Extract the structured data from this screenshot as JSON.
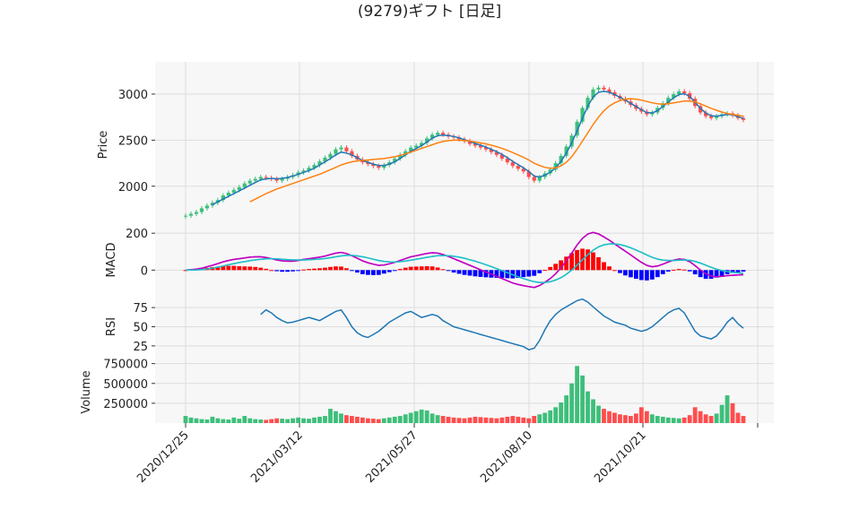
{
  "title": "(9279)ギフト [日足]",
  "colors": {
    "up": "#3dbf7a",
    "down": "#ff4d4d",
    "ma_short": "#1f77b4",
    "ma_long": "#ff7f0e",
    "macd": "#c000c0",
    "signal": "#20c0c8",
    "hist_pos": "#ff0000",
    "hist_neg": "#0000ff",
    "rsi": "#1f77b4",
    "panel_bg": "#f7f7f7",
    "grid": "#dddddd"
  },
  "chart_data": {
    "type": "line",
    "x_tick_labels": [
      "2020/12/25",
      "2021/03/12",
      "2021/05/27",
      "2021/08/10",
      "2021/10/21"
    ],
    "panels": [
      {
        "name": "price",
        "ylabel": "Price",
        "yticks": [
          2000,
          2500,
          3000
        ],
        "ylim": [
          1550,
          3350
        ],
        "series": [
          {
            "kind": "candlestick",
            "close": [
              1680,
              1700,
              1720,
              1760,
              1790,
              1820,
              1850,
              1900,
              1930,
              1960,
              1990,
              2030,
              2060,
              2080,
              2100,
              2090,
              2080,
              2060,
              2080,
              2100,
              2120,
              2150,
              2170,
              2200,
              2230,
              2270,
              2310,
              2350,
              2400,
              2420,
              2380,
              2330,
              2290,
              2260,
              2240,
              2220,
              2200,
              2230,
              2260,
              2300,
              2340,
              2380,
              2420,
              2440,
              2470,
              2520,
              2560,
              2580,
              2560,
              2540,
              2530,
              2510,
              2490,
              2460,
              2440,
              2420,
              2400,
              2370,
              2340,
              2300,
              2260,
              2220,
              2190,
              2160,
              2100,
              2060,
              2100,
              2140,
              2180,
              2250,
              2330,
              2430,
              2550,
              2700,
              2850,
              2960,
              3050,
              3070,
              3050,
              3020,
              2980,
              2950,
              2920,
              2880,
              2840,
              2810,
              2780,
              2800,
              2850,
              2900,
              2960,
              3000,
              3030,
              3010,
              2950,
              2870,
              2800,
              2760,
              2740,
              2760,
              2780,
              2790,
              2770,
              2740,
              2720
            ]
          },
          {
            "kind": "line",
            "values": [
              null,
              null,
              null,
              null,
              null,
              1800,
              1830,
              1860,
              1890,
              1920,
              1950,
              1980,
              2010,
              2040,
              2070,
              2080,
              2085,
              2080,
              2085,
              2095,
              2110,
              2130,
              2150,
              2170,
              2195,
              2230,
              2265,
              2300,
              2340,
              2370,
              2360,
              2340,
              2310,
              2280,
              2260,
              2240,
              2225,
              2225,
              2240,
              2265,
              2300,
              2340,
              2380,
              2410,
              2440,
              2480,
              2520,
              2550,
              2555,
              2550,
              2540,
              2525,
              2505,
              2485,
              2465,
              2445,
              2425,
              2400,
              2375,
              2345,
              2310,
              2270,
              2235,
              2200,
              2160,
              2110,
              2100,
              2120,
              2150,
              2200,
              2270,
              2360,
              2470,
              2600,
              2740,
              2870,
              2970,
              3020,
              3030,
              3020,
              2995,
              2965,
              2935,
              2900,
              2865,
              2830,
              2800,
              2795,
              2820,
              2865,
              2915,
              2960,
              2995,
              3005,
              2975,
              2910,
              2845,
              2795,
              2765,
              2760,
              2770,
              2780,
              2775,
              2755,
              2735
            ]
          },
          {
            "kind": "line",
            "values": [
              null,
              null,
              null,
              null,
              null,
              null,
              null,
              null,
              null,
              null,
              null,
              null,
              1830,
              1860,
              1890,
              1920,
              1945,
              1970,
              1990,
              2010,
              2030,
              2050,
              2070,
              2090,
              2110,
              2130,
              2155,
              2180,
              2205,
              2230,
              2250,
              2265,
              2275,
              2280,
              2285,
              2290,
              2295,
              2300,
              2310,
              2320,
              2335,
              2350,
              2370,
              2390,
              2410,
              2430,
              2450,
              2470,
              2485,
              2495,
              2500,
              2500,
              2495,
              2490,
              2480,
              2470,
              2460,
              2445,
              2430,
              2410,
              2390,
              2365,
              2340,
              2315,
              2285,
              2250,
              2225,
              2205,
              2195,
              2200,
              2220,
              2260,
              2320,
              2400,
              2490,
              2580,
              2670,
              2750,
              2820,
              2870,
              2905,
              2930,
              2945,
              2950,
              2945,
              2935,
              2920,
              2905,
              2895,
              2890,
              2895,
              2905,
              2915,
              2925,
              2925,
              2915,
              2895,
              2870,
              2845,
              2825,
              2805,
              2790,
              2780,
              2770,
              2760
            ]
          }
        ]
      },
      {
        "name": "macd",
        "ylabel": "MACD",
        "yticks": [
          0,
          200
        ],
        "ylim": [
          -120,
          230
        ],
        "series": [
          {
            "name": "MACD",
            "values": [
              0,
              2,
              5,
              10,
              18,
              26,
              35,
              45,
              52,
              58,
              62,
              66,
              70,
              72,
              72,
              68,
              62,
              55,
              50,
              48,
              48,
              52,
              58,
              62,
              66,
              70,
              76,
              84,
              92,
              96,
              90,
              78,
              64,
              50,
              40,
              32,
              26,
              28,
              34,
              42,
              52,
              62,
              72,
              78,
              84,
              90,
              94,
              92,
              84,
              74,
              62,
              50,
              38,
              26,
              14,
              2,
              -10,
              -22,
              -34,
              -46,
              -58,
              -70,
              -78,
              -84,
              -90,
              -94,
              -84,
              -66,
              -46,
              -20,
              12,
              50,
              92,
              136,
              172,
              196,
              204,
              196,
              180,
              162,
              142,
              122,
              102,
              82,
              62,
              42,
              26,
              18,
              22,
              32,
              44,
              54,
              60,
              58,
              46,
              24,
              0,
              -20,
              -32,
              -36,
              -34,
              -30,
              -28,
              -26,
              -25
            ]
          },
          {
            "name": "Signal",
            "values": [
              0,
              0,
              1,
              3,
              6,
              10,
              16,
              22,
              29,
              35,
              41,
              46,
              51,
              55,
              59,
              61,
              62,
              61,
              59,
              57,
              55,
              55,
              55,
              56,
              58,
              60,
              63,
              67,
              72,
              77,
              80,
              80,
              77,
              72,
              66,
              59,
              52,
              47,
              45,
              44,
              46,
              49,
              54,
              59,
              64,
              69,
              74,
              78,
              79,
              78,
              75,
              70,
              64,
              56,
              48,
              39,
              29,
              19,
              8,
              -3,
              -14,
              -25,
              -36,
              -46,
              -55,
              -63,
              -67,
              -67,
              -63,
              -54,
              -41,
              -23,
              0,
              27,
              56,
              84,
              108,
              126,
              137,
              142,
              142,
              138,
              131,
              121,
              109,
              96,
              82,
              69,
              60,
              54,
              52,
              52,
              54,
              55,
              53,
              47,
              38,
              27,
              15,
              5,
              -3,
              -8,
              -12,
              -15,
              -17
            ]
          }
        ]
      },
      {
        "name": "rsi",
        "ylabel": "RSI",
        "yticks": [
          25,
          50,
          75
        ],
        "ylim": [
          5,
          95
        ],
        "series": [
          {
            "name": "RSI",
            "values": [
              null,
              null,
              null,
              null,
              null,
              null,
              null,
              null,
              null,
              null,
              null,
              null,
              null,
              null,
              66,
              72,
              68,
              62,
              58,
              55,
              56,
              58,
              60,
              62,
              60,
              58,
              62,
              66,
              70,
              72,
              62,
              50,
              42,
              38,
              36,
              40,
              44,
              50,
              56,
              60,
              64,
              68,
              70,
              66,
              62,
              64,
              66,
              64,
              58,
              54,
              50,
              48,
              46,
              44,
              42,
              40,
              38,
              36,
              34,
              32,
              30,
              28,
              26,
              24,
              20,
              22,
              32,
              46,
              58,
              66,
              72,
              76,
              80,
              84,
              86,
              82,
              76,
              70,
              64,
              60,
              56,
              54,
              52,
              48,
              46,
              44,
              46,
              50,
              56,
              62,
              68,
              72,
              74,
              68,
              56,
              44,
              38,
              36,
              34,
              38,
              46,
              56,
              62,
              54,
              48
            ]
          }
        ]
      },
      {
        "name": "volume",
        "ylabel": "Volume",
        "yticks": [
          250000,
          500000,
          750000
        ],
        "ytick_labels": [
          "250000",
          "500000",
          "750000"
        ],
        "ylim": [
          0,
          780000
        ],
        "series": [
          {
            "kind": "bar",
            "values": [
              90000,
              70000,
              60000,
              50000,
              45000,
              80000,
              60000,
              50000,
              45000,
              70000,
              55000,
              90000,
              60000,
              50000,
              45000,
              40000,
              50000,
              60000,
              55000,
              50000,
              60000,
              70000,
              60000,
              55000,
              70000,
              80000,
              90000,
              180000,
              150000,
              120000,
              100000,
              90000,
              80000,
              70000,
              60000,
              55000,
              50000,
              60000,
              70000,
              80000,
              90000,
              110000,
              130000,
              150000,
              170000,
              160000,
              120000,
              100000,
              90000,
              80000,
              70000,
              65000,
              60000,
              70000,
              80000,
              75000,
              70000,
              65000,
              60000,
              70000,
              80000,
              90000,
              80000,
              70000,
              60000,
              90000,
              110000,
              130000,
              160000,
              200000,
              260000,
              350000,
              500000,
              720000,
              600000,
              400000,
              300000,
              220000,
              180000,
              150000,
              130000,
              110000,
              100000,
              90000,
              120000,
              200000,
              150000,
              110000,
              90000,
              80000,
              70000,
              65000,
              60000,
              70000,
              100000,
              200000,
              150000,
              110000,
              90000,
              120000,
              230000,
              350000,
              250000,
              130000,
              90000
            ]
          }
        ]
      }
    ]
  }
}
